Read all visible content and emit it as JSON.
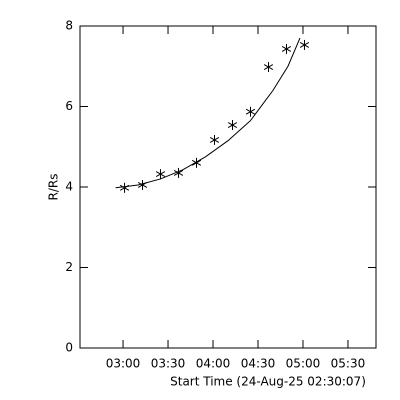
{
  "chart_data": {
    "type": "scatter",
    "xlabel": "Start Time (24-Aug-25 02:30:07)",
    "ylabel": "R/Rs",
    "xlim": [
      151.3,
      348.7
    ],
    "ylim": [
      0,
      8
    ],
    "xticks": [
      {
        "value": 180,
        "label": "03:00"
      },
      {
        "value": 210,
        "label": "03:30"
      },
      {
        "value": 240,
        "label": "04:00"
      },
      {
        "value": 270,
        "label": "04:30"
      },
      {
        "value": 300,
        "label": "05:00"
      },
      {
        "value": 330,
        "label": "05:30"
      }
    ],
    "yticks": [
      0,
      2,
      4,
      6,
      8
    ],
    "series": [
      {
        "style": "marker",
        "color": "#000000",
        "x": [
          181,
          193,
          205,
          217,
          229,
          241,
          253,
          265,
          277,
          289,
          301
        ],
        "values": [
          3.98,
          4.05,
          4.32,
          4.35,
          4.6,
          5.17,
          5.54,
          5.87,
          6.98,
          7.43,
          7.53
        ]
      },
      {
        "style": "line",
        "color": "#000000",
        "x": [
          175,
          190,
          205,
          220,
          235,
          250,
          265,
          280,
          290,
          298
        ],
        "values": [
          3.98,
          4.05,
          4.2,
          4.43,
          4.75,
          5.15,
          5.65,
          6.4,
          7.0,
          7.7
        ]
      }
    ]
  }
}
